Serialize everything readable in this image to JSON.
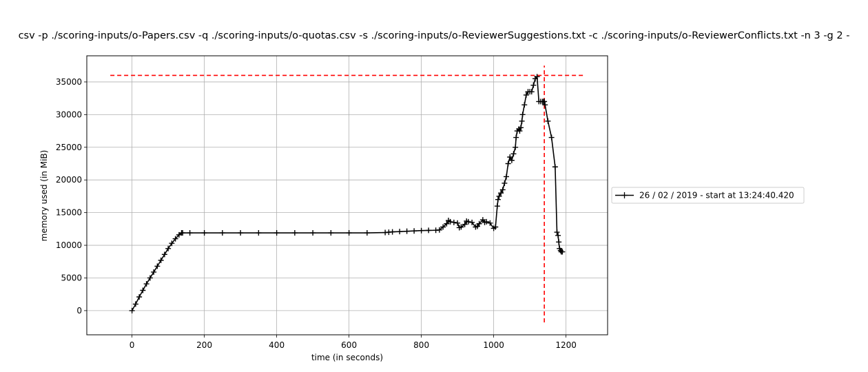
{
  "chart_data": {
    "type": "line",
    "title": "csv -p ./scoring-inputs/o-Papers.csv -q ./scoring-inputs/o-quotas.csv -s ./scoring-inputs/o-ReviewerSuggestions.txt -c ./scoring-inputs/o-ReviewerConflicts.txt -n 3 -g 2 -",
    "xlabel": "time (in seconds)",
    "ylabel": "memory used (in MiB)",
    "xlim": [
      -125,
      1315
    ],
    "ylim": [
      -3700,
      39000
    ],
    "xticks": [
      0,
      200,
      400,
      600,
      800,
      1000,
      1200
    ],
    "yticks": [
      0,
      5000,
      10000,
      15000,
      20000,
      25000,
      30000,
      35000
    ],
    "grid": true,
    "legend_position": "right-outside",
    "series": [
      {
        "name": "26 / 02 / 2019 - start at 13:24:40.420",
        "color": "#000000",
        "marker": "+",
        "x": [
          0,
          10,
          20,
          30,
          40,
          50,
          60,
          70,
          80,
          90,
          100,
          110,
          120,
          130,
          137,
          140,
          160,
          200,
          250,
          300,
          350,
          400,
          450,
          500,
          550,
          600,
          650,
          700,
          710,
          720,
          740,
          760,
          780,
          800,
          820,
          840,
          850,
          860,
          870,
          875,
          880,
          890,
          900,
          905,
          910,
          920,
          925,
          930,
          940,
          950,
          955,
          960,
          970,
          975,
          980,
          990,
          1000,
          1005,
          1010,
          1012,
          1015,
          1020,
          1025,
          1030,
          1035,
          1040,
          1045,
          1050,
          1055,
          1060,
          1062,
          1065,
          1070,
          1072,
          1075,
          1078,
          1080,
          1085,
          1090,
          1095,
          1100,
          1105,
          1110,
          1115,
          1120,
          1125,
          1130,
          1135,
          1138,
          1140,
          1142,
          1150,
          1160,
          1170,
          1175,
          1178,
          1180,
          1182,
          1185,
          1187,
          1190
        ],
        "y": [
          0,
          1000,
          2100,
          3100,
          4100,
          5000,
          5900,
          6800,
          7700,
          8600,
          9500,
          10300,
          11000,
          11600,
          11900,
          11900,
          11900,
          11900,
          11900,
          11900,
          11900,
          11900,
          11900,
          11900,
          11900,
          11900,
          11900,
          11950,
          12000,
          12050,
          12100,
          12150,
          12200,
          12250,
          12280,
          12300,
          12350,
          12800,
          13300,
          13800,
          13600,
          13500,
          13400,
          12700,
          12800,
          13200,
          13700,
          13600,
          13500,
          12800,
          12900,
          13300,
          13900,
          13500,
          13600,
          13400,
          12600,
          12800,
          16000,
          17000,
          17500,
          18000,
          18500,
          19500,
          20500,
          22500,
          23500,
          23000,
          24000,
          25000,
          26500,
          27500,
          27800,
          27500,
          28000,
          29000,
          30000,
          31500,
          33000,
          33500,
          33500,
          33500,
          34500,
          35500,
          35800,
          32000,
          32000,
          32000,
          32000,
          32000,
          31500,
          29000,
          26500,
          22000,
          12000,
          11500,
          10500,
          9500,
          9200,
          9000,
          9000
        ]
      }
    ],
    "reference_lines": [
      {
        "orientation": "horizontal",
        "y": 36000,
        "x_from": -60,
        "x_to": 1250,
        "color": "#ff0000",
        "style": "dashed"
      },
      {
        "orientation": "vertical",
        "x": 1140,
        "y_from": -1800,
        "y_to": 37500,
        "color": "#ff0000",
        "style": "dashed"
      }
    ]
  }
}
